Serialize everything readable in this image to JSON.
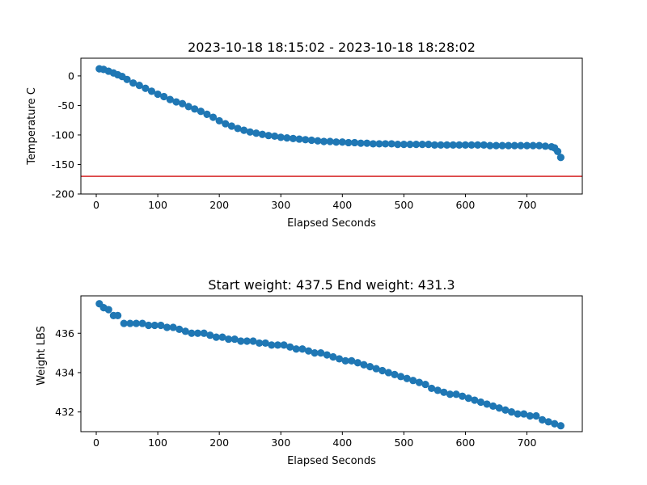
{
  "colors": {
    "series": "#1f77b4",
    "threshold": "#d62728",
    "axis": "#000000",
    "background": "#ffffff"
  },
  "chart_data": [
    {
      "type": "scatter",
      "title": "2023-10-18 18:15:02 - 2023-10-18 18:28:02",
      "xlabel": "Elapsed Seconds",
      "ylabel": "Temperature C",
      "xlim": [
        -25,
        790
      ],
      "ylim": [
        -200,
        30
      ],
      "xticks": [
        0,
        100,
        200,
        300,
        400,
        500,
        600,
        700
      ],
      "yticks": [
        0,
        -50,
        -100,
        -150,
        -200
      ],
      "grid": false,
      "hline": -170,
      "series": [
        {
          "x": [
            5,
            12,
            20,
            28,
            35,
            42,
            50,
            60,
            70,
            80,
            90,
            100,
            110,
            120,
            130,
            140,
            150,
            160,
            170,
            180,
            190,
            200,
            210,
            220,
            230,
            240,
            250,
            260,
            270,
            280,
            290,
            300,
            310,
            320,
            330,
            340,
            350,
            360,
            370,
            380,
            390,
            400,
            410,
            420,
            430,
            440,
            450,
            460,
            470,
            480,
            490,
            500,
            510,
            520,
            530,
            540,
            550,
            560,
            570,
            580,
            590,
            600,
            610,
            620,
            630,
            640,
            650,
            660,
            670,
            680,
            690,
            700,
            710,
            720,
            730,
            740,
            745,
            750,
            755
          ],
          "y": [
            12,
            11,
            8,
            5,
            2,
            -1,
            -6,
            -12,
            -16,
            -21,
            -26,
            -31,
            -35,
            -40,
            -44,
            -47,
            -52,
            -56,
            -60,
            -65,
            -70,
            -76,
            -81,
            -85,
            -89,
            -92,
            -95,
            -97,
            -99,
            -101,
            -102,
            -104,
            -105,
            -106,
            -107,
            -108,
            -109,
            -110,
            -111,
            -111,
            -112,
            -112,
            -113,
            -113,
            -114,
            -114,
            -115,
            -115,
            -115,
            -115,
            -116,
            -116,
            -116,
            -116,
            -116,
            -116,
            -117,
            -117,
            -117,
            -117,
            -117,
            -117,
            -117,
            -117,
            -117,
            -118,
            -118,
            -118,
            -118,
            -118,
            -118,
            -118,
            -118,
            -118,
            -119,
            -120,
            -122,
            -128,
            -138
          ]
        }
      ]
    },
    {
      "type": "scatter",
      "title": "Start weight: 437.5 End weight: 431.3",
      "xlabel": "Elapsed Seconds",
      "ylabel": "Weight LBS",
      "xlim": [
        -25,
        790
      ],
      "ylim": [
        431.0,
        437.9
      ],
      "xticks": [
        0,
        100,
        200,
        300,
        400,
        500,
        600,
        700
      ],
      "yticks": [
        432,
        434,
        436
      ],
      "grid": false,
      "series": [
        {
          "x": [
            5,
            12,
            20,
            28,
            35,
            45,
            55,
            65,
            75,
            85,
            95,
            105,
            115,
            125,
            135,
            145,
            155,
            165,
            175,
            185,
            195,
            205,
            215,
            225,
            235,
            245,
            255,
            265,
            275,
            285,
            295,
            305,
            315,
            325,
            335,
            345,
            355,
            365,
            375,
            385,
            395,
            405,
            415,
            425,
            435,
            445,
            455,
            465,
            475,
            485,
            495,
            505,
            515,
            525,
            535,
            545,
            555,
            565,
            575,
            585,
            595,
            605,
            615,
            625,
            635,
            645,
            655,
            665,
            675,
            685,
            695,
            705,
            715,
            725,
            735,
            745,
            755
          ],
          "y": [
            437.5,
            437.3,
            437.2,
            436.9,
            436.9,
            436.5,
            436.5,
            436.5,
            436.5,
            436.4,
            436.4,
            436.4,
            436.3,
            436.3,
            436.2,
            436.1,
            436.0,
            436.0,
            436.0,
            435.9,
            435.8,
            435.8,
            435.7,
            435.7,
            435.6,
            435.6,
            435.6,
            435.5,
            435.5,
            435.4,
            435.4,
            435.4,
            435.3,
            435.2,
            435.2,
            435.1,
            435.0,
            435.0,
            434.9,
            434.8,
            434.7,
            434.6,
            434.6,
            434.5,
            434.4,
            434.3,
            434.2,
            434.1,
            434.0,
            433.9,
            433.8,
            433.7,
            433.6,
            433.5,
            433.4,
            433.2,
            433.1,
            433.0,
            432.9,
            432.9,
            432.8,
            432.7,
            432.6,
            432.5,
            432.4,
            432.3,
            432.2,
            432.1,
            432.0,
            431.9,
            431.9,
            431.8,
            431.8,
            431.6,
            431.5,
            431.4,
            431.3
          ]
        }
      ]
    }
  ]
}
